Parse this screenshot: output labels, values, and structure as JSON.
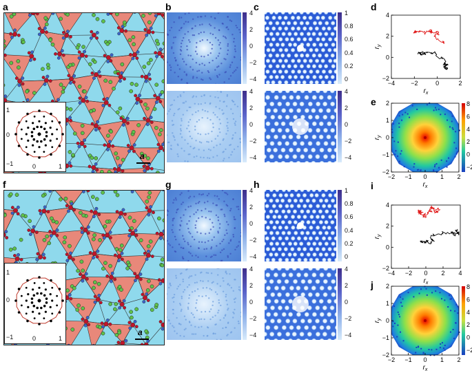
{
  "labels": {
    "a": "a",
    "b": "b",
    "c": "c",
    "d": "d",
    "e": "e",
    "f": "f",
    "g": "g",
    "h": "h",
    "i": "i",
    "j": "j"
  },
  "scale_bar_label": "a",
  "colors": {
    "tile_square": "#8fd9ec",
    "tile_triangle": "#e8887a",
    "particle_green": "#5ec24b",
    "particle_red": "#c0142a",
    "particle_blue": "#3a63c8",
    "bg_dark_blue": "#2b5bd6",
    "bg_light_blue": "#d2e6fb",
    "traj_red": "#e01919",
    "traj_black": "#000000",
    "dodecagon": "#c0392b"
  },
  "colorbar_bc": {
    "ticks": [
      "4",
      "2",
      "0",
      "−2",
      "−4"
    ]
  },
  "colorbar_c_top": {
    "ticks": [
      "1",
      "0.8",
      "0.6",
      "0.4",
      "0.2",
      "0"
    ]
  },
  "colorbar_c_bottom": {
    "ticks": [
      "4",
      "2",
      "0",
      "−2",
      "−4"
    ]
  },
  "colorbar_e": {
    "ticks": [
      "8",
      "6",
      "4",
      "2",
      "0",
      "−2"
    ]
  },
  "inset_top": {
    "xticks": [
      "−1",
      "0",
      "1"
    ],
    "yticks": [
      "1",
      "0",
      "−1"
    ]
  },
  "inset_bottom": {
    "xticks": [
      "−1",
      "0",
      "1"
    ],
    "yticks": [
      "1",
      "0",
      "−1"
    ]
  },
  "traj_d": {
    "xlabel": "r",
    "xsub": "x",
    "ylabel": "r",
    "ysub": "y",
    "xticks": [
      "−4",
      "−2",
      "0",
      "2"
    ],
    "yticks": [
      "4",
      "2",
      "0",
      "−2"
    ]
  },
  "traj_i": {
    "xlabel": "r",
    "xsub": "x",
    "ylabel": "r",
    "ysub": "y",
    "xticks": [
      "−4",
      "−2",
      "0",
      "2",
      "4"
    ],
    "yticks": [
      "4",
      "2",
      "0",
      "−2"
    ]
  },
  "heat_e": {
    "xlabel": "r",
    "xsub": "x",
    "ylabel": "r",
    "ysub": "y",
    "xticks": [
      "−2",
      "−1",
      "0",
      "1",
      "2"
    ],
    "yticks": [
      "2",
      "1",
      "0",
      "−1",
      "−2"
    ]
  },
  "heat_j": {
    "xlabel": "r",
    "xsub": "x",
    "ylabel": "r",
    "ysub": "y",
    "xticks": [
      "−2",
      "−1",
      "0",
      "1",
      "2"
    ],
    "yticks": [
      "2",
      "1",
      "0",
      "−1",
      "−2"
    ]
  }
}
